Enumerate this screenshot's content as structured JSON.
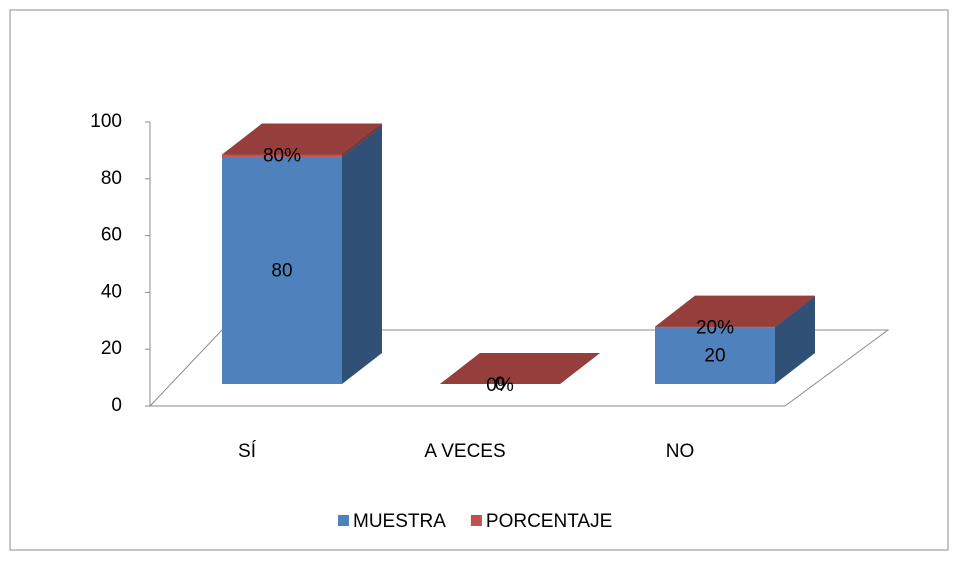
{
  "chart_data": {
    "type": "bar3d_stacked",
    "categories": [
      "SÍ",
      "A VECES",
      "NO"
    ],
    "series": [
      {
        "name": "MUESTRA",
        "color": "#4f81bd",
        "values": [
          80,
          0,
          20
        ]
      },
      {
        "name": "PORCENTAJE",
        "color": "#c0504d",
        "values": [
          0.8,
          0,
          0.2
        ],
        "value_labels": [
          "80%",
          "0%",
          "20%"
        ]
      }
    ],
    "ylim": [
      0,
      100
    ],
    "yticks": [
      0,
      20,
      40,
      60,
      80,
      100
    ],
    "legend": "bottom"
  }
}
